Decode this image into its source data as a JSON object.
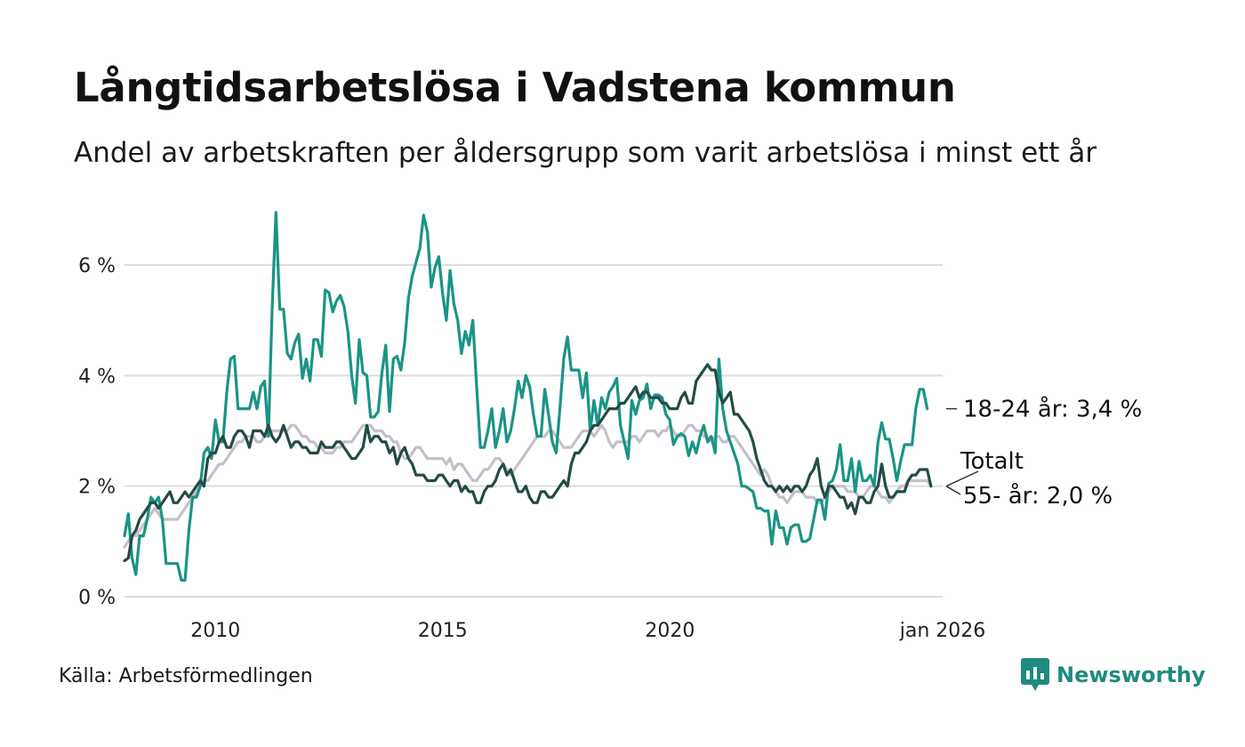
{
  "title": "Långtidsarbetslösa i Vadstena kommun",
  "subtitle": "Andel av arbetskraften per åldersgrupp som varit arbetslösa i minst ett år",
  "source": "Källa: Arbetsförmedlingen",
  "brand": "Newsworthy",
  "colors": {
    "young": "#1a9484",
    "total": "#254b46",
    "old": "#c4c0cb",
    "grid": "#dddddd",
    "brand": "#1f8a80"
  },
  "chart_data": {
    "type": "line",
    "title": "Långtidsarbetslösa i Vadstena kommun",
    "xlabel": "",
    "ylabel": "",
    "x_start": 2008.0,
    "x_step": 0.0833,
    "xlim": [
      2008.0,
      2026.0
    ],
    "ylim": [
      0,
      7
    ],
    "y_ticks": [
      0,
      2,
      4,
      6
    ],
    "y_tick_labels": [
      "0 %",
      "2 %",
      "4 %",
      "6 %"
    ],
    "x_ticks": [
      2010,
      2015,
      2020,
      2026
    ],
    "x_tick_labels": [
      "2010",
      "2015",
      "2020",
      "jan 2026"
    ],
    "grid": true,
    "series": [
      {
        "name": "55- år",
        "color_key": "old",
        "label_text": "55- år: 2,0 %",
        "values": [
          0.9,
          1.0,
          1.1,
          1.1,
          1.2,
          1.3,
          1.4,
          1.5,
          1.6,
          1.5,
          1.4,
          1.4,
          1.4,
          1.4,
          1.4,
          1.5,
          1.6,
          1.7,
          1.8,
          1.9,
          2.0,
          2.1,
          2.1,
          2.2,
          2.3,
          2.4,
          2.4,
          2.5,
          2.6,
          2.7,
          2.8,
          2.8,
          2.9,
          2.9,
          2.9,
          2.8,
          2.8,
          2.9,
          2.9,
          3.0,
          3.0,
          3.0,
          3.0,
          3.0,
          3.1,
          3.1,
          3.0,
          2.9,
          2.9,
          2.8,
          2.8,
          2.7,
          2.7,
          2.6,
          2.6,
          2.6,
          2.7,
          2.7,
          2.8,
          2.8,
          2.8,
          2.9,
          3.0,
          3.1,
          3.1,
          3.1,
          3.0,
          3.0,
          3.0,
          2.9,
          2.9,
          2.8,
          2.8,
          2.6,
          2.5,
          2.5,
          2.6,
          2.7,
          2.7,
          2.6,
          2.5,
          2.5,
          2.5,
          2.5,
          2.5,
          2.4,
          2.5,
          2.3,
          2.4,
          2.4,
          2.3,
          2.2,
          2.1,
          2.1,
          2.2,
          2.3,
          2.3,
          2.4,
          2.5,
          2.5,
          2.4,
          2.3,
          2.2,
          2.3,
          2.4,
          2.5,
          2.6,
          2.7,
          2.8,
          2.9,
          2.9,
          2.9,
          3.0,
          3.0,
          2.9,
          2.8,
          2.7,
          2.7,
          2.7,
          2.8,
          2.9,
          3.0,
          3.0,
          3.0,
          2.9,
          3.0,
          3.1,
          3.0,
          2.8,
          2.7,
          2.8,
          2.8,
          2.8,
          2.8,
          2.9,
          2.9,
          2.8,
          2.9,
          3.0,
          3.0,
          3.0,
          2.9,
          3.0,
          3.0,
          3.1,
          3.0,
          2.9,
          2.9,
          3.0,
          3.1,
          3.1,
          3.0,
          3.0,
          2.9,
          2.9,
          2.8,
          2.9,
          2.9,
          2.8,
          2.8,
          2.9,
          2.9,
          2.8,
          2.7,
          2.6,
          2.5,
          2.4,
          2.3,
          2.2,
          2.3,
          2.2,
          2.0,
          1.9,
          1.8,
          1.8,
          1.7,
          1.8,
          1.9,
          1.9,
          1.9,
          1.8,
          1.8,
          1.8,
          1.7,
          1.7,
          1.8,
          1.9,
          2.0,
          2.0,
          2.0,
          2.0,
          1.9,
          1.9,
          1.9,
          1.8,
          1.8,
          1.9,
          2.0,
          2.0,
          1.9,
          1.8,
          1.8,
          1.7,
          1.8,
          1.9,
          2.0,
          2.0,
          2.1,
          2.1,
          2.1,
          2.1,
          2.1,
          2.1,
          2.0
        ]
      },
      {
        "name": "18-24 år",
        "color_key": "young",
        "label_text": "18-24 år: 3,4 %",
        "values": [
          1.1,
          1.5,
          0.7,
          0.4,
          1.1,
          1.1,
          1.4,
          1.8,
          1.7,
          1.8,
          1.4,
          0.6,
          0.6,
          0.6,
          0.6,
          0.3,
          0.3,
          1.2,
          1.8,
          1.8,
          2.0,
          2.6,
          2.7,
          2.5,
          3.2,
          2.8,
          2.8,
          3.7,
          4.3,
          4.35,
          3.4,
          3.4,
          3.4,
          3.4,
          3.7,
          3.4,
          3.8,
          3.9,
          2.9,
          5.2,
          6.95,
          5.2,
          5.2,
          4.4,
          4.3,
          4.6,
          4.75,
          3.95,
          4.3,
          3.9,
          4.65,
          4.65,
          4.35,
          5.55,
          5.5,
          5.15,
          5.35,
          5.45,
          5.25,
          4.8,
          4.0,
          3.5,
          4.65,
          4.05,
          4.0,
          3.25,
          3.25,
          3.35,
          4.05,
          4.55,
          3.35,
          4.3,
          4.35,
          4.1,
          4.6,
          5.4,
          5.8,
          6.05,
          6.3,
          6.9,
          6.6,
          5.6,
          5.95,
          6.15,
          5.5,
          5.0,
          5.9,
          5.3,
          5.0,
          4.4,
          4.8,
          4.55,
          5.0,
          3.8,
          2.7,
          2.7,
          3.0,
          3.4,
          2.7,
          3.0,
          3.4,
          2.8,
          3.0,
          3.4,
          3.9,
          3.6,
          4.0,
          3.8,
          3.3,
          2.9,
          2.9,
          3.75,
          3.3,
          2.8,
          2.6,
          3.4,
          4.3,
          4.7,
          4.1,
          4.1,
          4.1,
          3.6,
          4.05,
          3.0,
          3.55,
          3.1,
          3.6,
          3.4,
          3.7,
          3.8,
          3.95,
          3.1,
          2.8,
          2.5,
          3.55,
          3.3,
          3.55,
          3.6,
          3.85,
          3.4,
          3.65,
          3.65,
          3.6,
          3.3,
          3.2,
          2.75,
          2.9,
          2.95,
          2.9,
          2.55,
          2.8,
          2.6,
          2.9,
          3.1,
          2.8,
          2.9,
          2.6,
          4.3,
          3.4,
          3.0,
          2.8,
          2.6,
          2.4,
          2.0,
          2.0,
          1.95,
          1.9,
          1.6,
          1.6,
          1.55,
          1.55,
          0.95,
          1.55,
          1.25,
          1.25,
          0.95,
          1.25,
          1.3,
          1.3,
          1.0,
          1.0,
          1.05,
          1.4,
          1.75,
          1.75,
          1.4,
          2.05,
          2.1,
          2.3,
          2.75,
          2.1,
          2.1,
          2.5,
          1.9,
          2.45,
          2.1,
          2.1,
          2.2,
          2.0,
          2.8,
          3.15,
          2.85,
          2.85,
          2.5,
          2.1,
          2.45,
          2.75,
          2.75,
          2.75,
          3.4,
          3.75,
          3.75,
          3.4
        ]
      },
      {
        "name": "Totalt",
        "color_key": "total",
        "label_text": "Totalt",
        "values": [
          0.65,
          0.7,
          1.1,
          1.2,
          1.4,
          1.5,
          1.6,
          1.7,
          1.7,
          1.6,
          1.7,
          1.8,
          1.9,
          1.7,
          1.7,
          1.8,
          1.9,
          1.8,
          1.9,
          2.0,
          2.1,
          2.0,
          2.5,
          2.6,
          2.6,
          2.8,
          2.9,
          2.7,
          2.7,
          2.9,
          3.0,
          3.0,
          2.9,
          2.7,
          3.0,
          3.0,
          3.0,
          2.9,
          3.1,
          2.9,
          2.8,
          2.9,
          3.1,
          2.9,
          2.7,
          2.8,
          2.8,
          2.7,
          2.7,
          2.6,
          2.6,
          2.6,
          2.8,
          2.7,
          2.7,
          2.7,
          2.8,
          2.8,
          2.7,
          2.6,
          2.5,
          2.5,
          2.6,
          2.7,
          3.1,
          2.8,
          2.9,
          2.9,
          2.8,
          2.8,
          2.6,
          2.7,
          2.4,
          2.6,
          2.7,
          2.5,
          2.4,
          2.2,
          2.2,
          2.2,
          2.1,
          2.1,
          2.1,
          2.2,
          2.2,
          2.1,
          2.0,
          2.1,
          2.1,
          1.9,
          2.0,
          1.9,
          1.9,
          1.7,
          1.7,
          1.9,
          2.0,
          2.0,
          2.1,
          2.3,
          2.4,
          2.2,
          2.3,
          2.1,
          1.9,
          1.9,
          2.0,
          1.8,
          1.7,
          1.7,
          1.9,
          1.9,
          1.8,
          1.8,
          1.9,
          2.0,
          2.1,
          2.0,
          2.4,
          2.6,
          2.6,
          2.7,
          2.8,
          3.0,
          3.1,
          3.1,
          3.2,
          3.3,
          3.4,
          3.4,
          3.4,
          3.5,
          3.5,
          3.6,
          3.7,
          3.8,
          3.6,
          3.7,
          3.7,
          3.6,
          3.6,
          3.6,
          3.5,
          3.5,
          3.4,
          3.4,
          3.4,
          3.6,
          3.7,
          3.5,
          3.5,
          3.9,
          4.0,
          4.1,
          4.2,
          4.1,
          4.1,
          3.7,
          3.5,
          3.6,
          3.7,
          3.3,
          3.3,
          3.2,
          3.1,
          3.0,
          2.8,
          2.5,
          2.3,
          2.1,
          2.0,
          2.0,
          1.9,
          2.0,
          1.9,
          2.0,
          1.9,
          2.0,
          2.0,
          1.9,
          2.0,
          2.2,
          2.3,
          2.5,
          2.0,
          1.8,
          2.0,
          2.0,
          1.9,
          1.8,
          1.8,
          1.6,
          1.7,
          1.5,
          1.8,
          1.8,
          1.7,
          1.7,
          1.9,
          2.0,
          2.4,
          2.0,
          1.8,
          1.8,
          1.9,
          1.9,
          1.9,
          2.1,
          2.2,
          2.2,
          2.3,
          2.3,
          2.3,
          2.0
        ]
      }
    ]
  }
}
